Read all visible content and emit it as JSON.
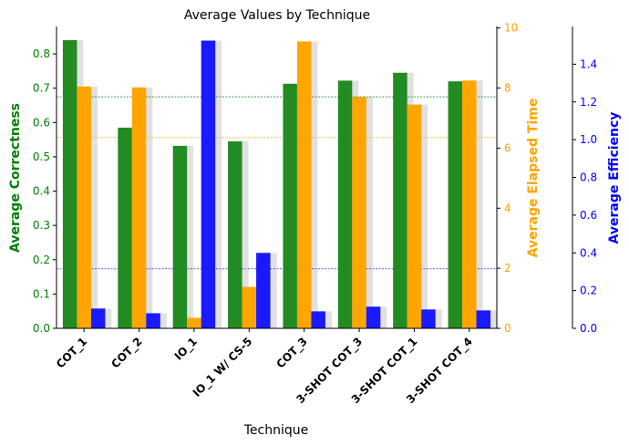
{
  "chart_data": {
    "type": "bar",
    "title": "Average Values by Technique",
    "xlabel": "Technique",
    "categories": [
      "COT_1",
      "COT_2",
      "IO_1",
      "IO_1 W/ CS-5",
      "COT_3",
      "3-SHOT COT_3",
      "3-SHOT COT_1",
      "3-SHOT COT_4"
    ],
    "axes": {
      "left": {
        "label": "Average Correctness",
        "color": "#008000",
        "ylim": [
          0,
          0.88
        ],
        "ticks": [
          "0.0",
          "0.1",
          "0.2",
          "0.3",
          "0.4",
          "0.5",
          "0.6",
          "0.7",
          "0.8"
        ]
      },
      "right1": {
        "label": "Average Elapsed Time",
        "color": "#FFA500",
        "ylim": [
          0,
          10.05
        ],
        "ticks": [
          "0",
          "2",
          "4",
          "6",
          "8",
          "10"
        ]
      },
      "right2": {
        "label": "Average Efficiency",
        "color": "#0000FF",
        "ylim": [
          0,
          1.6
        ],
        "ticks": [
          "0.0",
          "0.2",
          "0.4",
          "0.6",
          "0.8",
          "1.0",
          "1.2",
          "1.4"
        ]
      }
    },
    "series": [
      {
        "name": "Average Correctness",
        "axis": "left",
        "color": "#228B22",
        "values": [
          0.84,
          0.585,
          0.532,
          0.545,
          0.713,
          0.722,
          0.745,
          0.72
        ]
      },
      {
        "name": "Average Elapsed Time",
        "axis": "right1",
        "color": "#FFA500",
        "values": [
          8.05,
          8.02,
          0.35,
          1.38,
          9.55,
          7.7,
          7.45,
          8.25
        ]
      },
      {
        "name": "Average Efficiency",
        "axis": "right2",
        "color": "#1A1AFF",
        "values": [
          0.105,
          0.08,
          1.525,
          0.4,
          0.09,
          0.115,
          0.1,
          0.095
        ]
      }
    ],
    "reference_lines": [
      {
        "axis": "left",
        "value": 0.675,
        "color": "#008000"
      },
      {
        "axis": "right1",
        "value": 6.35,
        "color": "#FFA500"
      },
      {
        "axis": "right2",
        "value": 0.315,
        "color": "#0000FF"
      }
    ],
    "shadow_bars": true,
    "grid": false
  }
}
